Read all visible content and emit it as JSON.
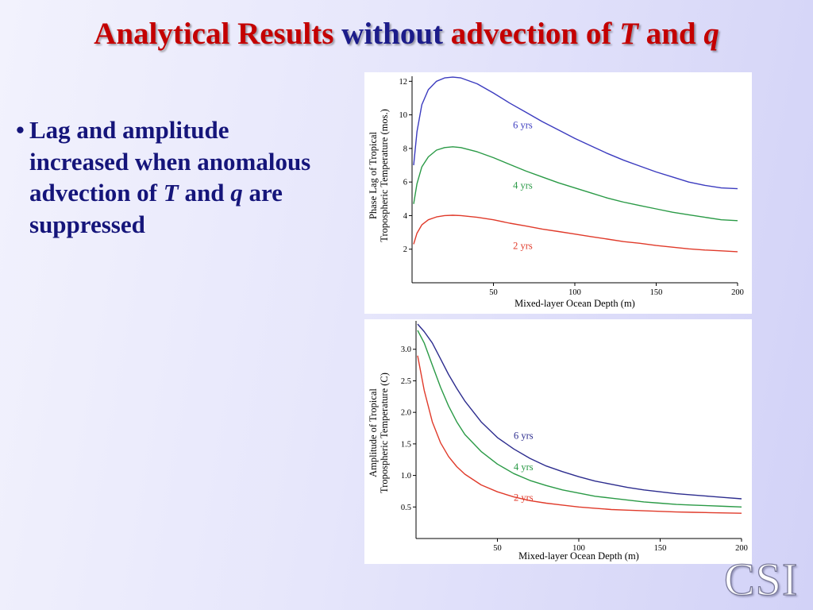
{
  "title": {
    "part1": "Analytical Results ",
    "part2": "without",
    "part3": " advection of ",
    "var1": "T",
    "part4": " and ",
    "var2": "q"
  },
  "bullet": {
    "symbol": "•",
    "text_before_T": "Lag and amplitude increased when anomalous advection of ",
    "var_T": "T",
    "text_and": " and ",
    "var_q": "q",
    "text_after": " are suppressed"
  },
  "logo": {
    "text": "CSI"
  },
  "colors": {
    "title_red": "#c40000",
    "title_blue": "#1c1c8a",
    "bullet_text": "#15157a"
  },
  "chart_data": [
    {
      "type": "line",
      "xlabel": "Mixed-layer Ocean Depth (m)",
      "ylabel": "Phase Lag of Tropical Tropospheric Temperature (mos.)",
      "ylabel_lines": [
        "Phase Lag of Tropical",
        "Tropospheric Temperature (mos.)"
      ],
      "xlim": [
        0,
        200
      ],
      "ylim": [
        0,
        12.3
      ],
      "xticks": [
        50,
        100,
        150,
        200
      ],
      "xtick_labels": [
        "50",
        "100",
        "150",
        "200"
      ],
      "yticks": [
        2,
        4,
        6,
        8,
        10,
        12
      ],
      "ytick_labels": [
        "2",
        "4",
        "6",
        "8",
        "10",
        "12"
      ],
      "grid": false,
      "series": [
        {
          "name": "6 yrs",
          "color": "#3b3bbf",
          "label_at": [
            62,
            9.2
          ],
          "x": [
            1,
            3,
            6,
            10,
            15,
            20,
            25,
            30,
            40,
            50,
            60,
            70,
            80,
            90,
            100,
            110,
            120,
            130,
            140,
            150,
            160,
            170,
            180,
            190,
            200
          ],
          "y": [
            7.0,
            9.0,
            10.6,
            11.5,
            12.0,
            12.2,
            12.25,
            12.2,
            11.85,
            11.3,
            10.7,
            10.15,
            9.6,
            9.1,
            8.6,
            8.15,
            7.7,
            7.3,
            6.95,
            6.6,
            6.3,
            6.0,
            5.8,
            5.65,
            5.6
          ]
        },
        {
          "name": "4 yrs",
          "color": "#2a9a46",
          "label_at": [
            62,
            5.6
          ],
          "x": [
            1,
            3,
            6,
            10,
            15,
            20,
            25,
            30,
            40,
            50,
            60,
            70,
            80,
            90,
            100,
            110,
            120,
            130,
            140,
            150,
            160,
            170,
            180,
            190,
            200
          ],
          "y": [
            4.7,
            5.9,
            6.9,
            7.5,
            7.9,
            8.05,
            8.1,
            8.05,
            7.8,
            7.45,
            7.05,
            6.65,
            6.3,
            5.95,
            5.65,
            5.35,
            5.05,
            4.8,
            4.6,
            4.4,
            4.2,
            4.05,
            3.9,
            3.75,
            3.7
          ]
        },
        {
          "name": "2 yrs",
          "color": "#e03a2a",
          "label_at": [
            62,
            2.0
          ],
          "x": [
            1,
            3,
            6,
            10,
            15,
            20,
            25,
            30,
            40,
            50,
            60,
            70,
            80,
            90,
            100,
            110,
            120,
            130,
            140,
            150,
            160,
            170,
            180,
            190,
            200
          ],
          "y": [
            2.3,
            2.95,
            3.45,
            3.75,
            3.92,
            4.0,
            4.02,
            4.0,
            3.9,
            3.75,
            3.55,
            3.38,
            3.2,
            3.05,
            2.9,
            2.75,
            2.6,
            2.45,
            2.35,
            2.22,
            2.12,
            2.02,
            1.95,
            1.9,
            1.85
          ]
        }
      ]
    },
    {
      "type": "line",
      "xlabel": "Mixed-layer Ocean Depth (m)",
      "ylabel": "Amplitude of Tropical Tropospheric Temperature (C)",
      "ylabel_lines": [
        "Amplitude of Tropical",
        "Tropospheric Temperature (C)"
      ],
      "xlim": [
        0,
        200
      ],
      "ylim": [
        0,
        3.45
      ],
      "xticks": [
        50,
        100,
        150,
        200
      ],
      "xtick_labels": [
        "50",
        "100",
        "150",
        "200"
      ],
      "yticks": [
        0.5,
        1.0,
        1.5,
        2.0,
        2.5,
        3.0
      ],
      "ytick_labels": [
        "0.5",
        "1.0",
        "1.5",
        "2.0",
        "2.5",
        "3.0"
      ],
      "grid": false,
      "series": [
        {
          "name": "6 yrs",
          "color": "#2c2c8e",
          "label_at": [
            60,
            1.58
          ],
          "x": [
            1,
            5,
            10,
            15,
            20,
            25,
            30,
            40,
            50,
            60,
            70,
            80,
            90,
            100,
            110,
            120,
            130,
            140,
            150,
            160,
            170,
            180,
            190,
            200
          ],
          "y": [
            3.4,
            3.28,
            3.1,
            2.85,
            2.6,
            2.38,
            2.18,
            1.85,
            1.6,
            1.42,
            1.27,
            1.15,
            1.06,
            0.98,
            0.91,
            0.86,
            0.81,
            0.77,
            0.74,
            0.71,
            0.69,
            0.67,
            0.65,
            0.63
          ]
        },
        {
          "name": "4 yrs",
          "color": "#2a9a46",
          "label_at": [
            60,
            1.08
          ],
          "x": [
            1,
            5,
            10,
            15,
            20,
            25,
            30,
            40,
            50,
            60,
            70,
            80,
            90,
            100,
            110,
            120,
            130,
            140,
            150,
            160,
            170,
            180,
            190,
            200
          ],
          "y": [
            3.3,
            3.1,
            2.75,
            2.4,
            2.1,
            1.85,
            1.65,
            1.38,
            1.18,
            1.03,
            0.92,
            0.84,
            0.77,
            0.72,
            0.67,
            0.64,
            0.61,
            0.58,
            0.56,
            0.54,
            0.53,
            0.52,
            0.51,
            0.5
          ]
        },
        {
          "name": "2 yrs",
          "color": "#e03a2a",
          "label_at": [
            60,
            0.6
          ],
          "x": [
            1,
            5,
            10,
            15,
            20,
            25,
            30,
            40,
            50,
            60,
            70,
            80,
            90,
            100,
            110,
            120,
            130,
            140,
            150,
            160,
            170,
            180,
            190,
            200
          ],
          "y": [
            2.9,
            2.35,
            1.85,
            1.52,
            1.3,
            1.14,
            1.02,
            0.85,
            0.74,
            0.66,
            0.6,
            0.56,
            0.53,
            0.5,
            0.48,
            0.46,
            0.45,
            0.44,
            0.43,
            0.42,
            0.415,
            0.41,
            0.405,
            0.4
          ]
        }
      ]
    }
  ]
}
